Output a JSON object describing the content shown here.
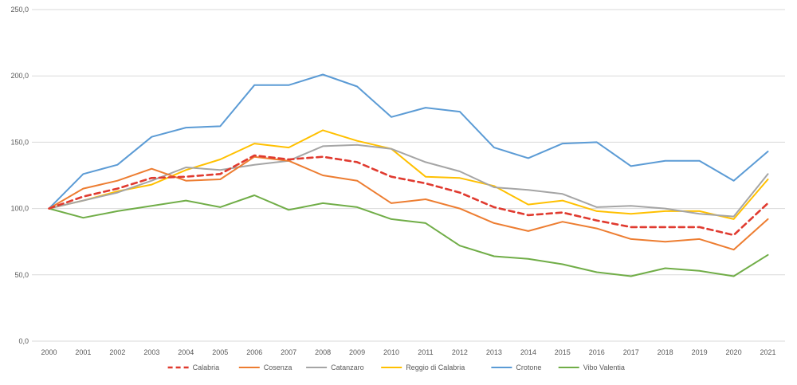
{
  "chart_data": {
    "type": "line",
    "x": [
      "2000",
      "2001",
      "2002",
      "2003",
      "2004",
      "2005",
      "2006",
      "2007",
      "2008",
      "2009",
      "2010",
      "2011",
      "2012",
      "2013",
      "2014",
      "2015",
      "2016",
      "2017",
      "2018",
      "2019",
      "2020",
      "2021"
    ],
    "ylim": [
      0,
      250
    ],
    "yticks": [
      "0,0",
      "50,0",
      "100,0",
      "150,0",
      "200,0",
      "250,0"
    ],
    "ytick_values": [
      0,
      50,
      100,
      150,
      200,
      250
    ],
    "grid": true,
    "legend": "bottom",
    "series": [
      {
        "name": "Calabria",
        "color": "#e03a2f",
        "dashed": true,
        "values": [
          100,
          109,
          115,
          123,
          124,
          126,
          140,
          137,
          139,
          135,
          124,
          119,
          112,
          101,
          95,
          97,
          91,
          86,
          86,
          86,
          80,
          104
        ]
      },
      {
        "name": "Cosenza",
        "color": "#ed7d31",
        "dashed": false,
        "values": [
          100,
          115,
          121,
          130,
          121,
          122,
          139,
          136,
          125,
          121,
          104,
          107,
          100,
          89,
          83,
          90,
          85,
          77,
          75,
          77,
          69,
          92
        ]
      },
      {
        "name": "Catanzaro",
        "color": "#a5a5a5",
        "dashed": false,
        "values": [
          100,
          106,
          112,
          121,
          131,
          129,
          133,
          136,
          147,
          148,
          145,
          135,
          128,
          116,
          114,
          111,
          101,
          102,
          100,
          96,
          94,
          126
        ]
      },
      {
        "name": "Reggio di Calabria",
        "color": "#ffc000",
        "dashed": false,
        "values": [
          100,
          106,
          113,
          118,
          129,
          137,
          149,
          146,
          159,
          151,
          145,
          124,
          123,
          117,
          103,
          106,
          98,
          96,
          98,
          98,
          92,
          122
        ]
      },
      {
        "name": "Crotone",
        "color": "#5b9bd5",
        "dashed": false,
        "values": [
          100,
          126,
          133,
          154,
          161,
          162,
          193,
          193,
          201,
          192,
          169,
          176,
          173,
          146,
          138,
          149,
          150,
          132,
          136,
          136,
          121,
          143
        ]
      },
      {
        "name": "Vibo Valentia",
        "color": "#70ad47",
        "dashed": false,
        "values": [
          100,
          93,
          98,
          102,
          106,
          101,
          110,
          99,
          104,
          101,
          92,
          89,
          72,
          64,
          62,
          58,
          52,
          49,
          55,
          53,
          49,
          65
        ]
      }
    ]
  }
}
